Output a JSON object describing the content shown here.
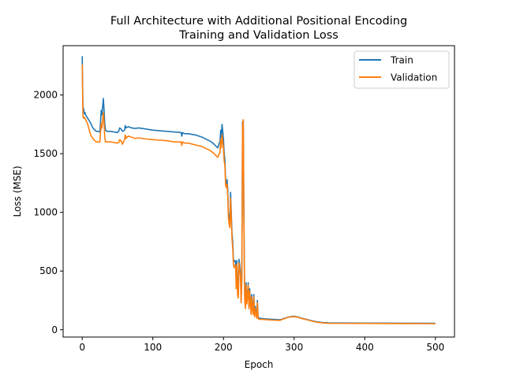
{
  "chart_data": {
    "type": "line",
    "title_line1": "Full Architecture with Additional Positional Encoding",
    "title_line2": "Training and Validation Loss",
    "xlabel": "Epoch",
    "ylabel": "Loss (MSE)",
    "xlim": [
      -27,
      527
    ],
    "ylim": [
      -62,
      2420
    ],
    "xticks": [
      0,
      100,
      200,
      300,
      400,
      500
    ],
    "yticks": [
      0,
      500,
      1000,
      1500,
      2000
    ],
    "xtick_labels": [
      "0",
      "100",
      "200",
      "300",
      "400",
      "500"
    ],
    "ytick_labels": [
      "0",
      "500",
      "1000",
      "1500",
      "2000"
    ],
    "grid": false,
    "legend_position": "top-right",
    "series": [
      {
        "name": "Train",
        "color": "#1f77b4",
        "points": [
          [
            0,
            2330
          ],
          [
            1,
            1900
          ],
          [
            2,
            1880
          ],
          [
            3,
            1840
          ],
          [
            4,
            1850
          ],
          [
            5,
            1830
          ],
          [
            8,
            1800
          ],
          [
            10,
            1780
          ],
          [
            12,
            1760
          ],
          [
            15,
            1720
          ],
          [
            18,
            1700
          ],
          [
            20,
            1690
          ],
          [
            22,
            1690
          ],
          [
            25,
            1685
          ],
          [
            26,
            1780
          ],
          [
            27,
            1870
          ],
          [
            28,
            1830
          ],
          [
            29,
            1900
          ],
          [
            30,
            1970
          ],
          [
            31,
            1870
          ],
          [
            32,
            1750
          ],
          [
            33,
            1700
          ],
          [
            35,
            1690
          ],
          [
            40,
            1690
          ],
          [
            45,
            1685
          ],
          [
            50,
            1680
          ],
          [
            52,
            1695
          ],
          [
            53,
            1720
          ],
          [
            55,
            1710
          ],
          [
            57,
            1690
          ],
          [
            60,
            1700
          ],
          [
            61,
            1740
          ],
          [
            62,
            1720
          ],
          [
            65,
            1730
          ],
          [
            70,
            1720
          ],
          [
            75,
            1715
          ],
          [
            80,
            1720
          ],
          [
            90,
            1710
          ],
          [
            100,
            1700
          ],
          [
            110,
            1695
          ],
          [
            120,
            1690
          ],
          [
            130,
            1685
          ],
          [
            140,
            1680
          ],
          [
            141,
            1650
          ],
          [
            142,
            1680
          ],
          [
            145,
            1670
          ],
          [
            150,
            1670
          ],
          [
            160,
            1660
          ],
          [
            170,
            1640
          ],
          [
            180,
            1610
          ],
          [
            185,
            1590
          ],
          [
            190,
            1560
          ],
          [
            192,
            1550
          ],
          [
            194,
            1590
          ],
          [
            195,
            1600
          ],
          [
            196,
            1700
          ],
          [
            197,
            1640
          ],
          [
            198,
            1750
          ],
          [
            199,
            1690
          ],
          [
            200,
            1620
          ],
          [
            201,
            1500
          ],
          [
            202,
            1450
          ],
          [
            203,
            1270
          ],
          [
            204,
            1240
          ],
          [
            205,
            1280
          ],
          [
            206,
            1200
          ],
          [
            207,
            1000
          ],
          [
            208,
            950
          ],
          [
            209,
            900
          ],
          [
            210,
            1170
          ],
          [
            211,
            1000
          ],
          [
            212,
            820
          ],
          [
            213,
            750
          ],
          [
            214,
            600
          ],
          [
            215,
            580
          ],
          [
            216,
            590
          ],
          [
            217,
            580
          ],
          [
            218,
            400
          ],
          [
            219,
            590
          ],
          [
            220,
            350
          ],
          [
            221,
            300
          ],
          [
            222,
            600
          ],
          [
            223,
            550
          ],
          [
            224,
            500
          ],
          [
            225,
            250
          ],
          [
            226,
            450
          ],
          [
            227,
            1770
          ],
          [
            228,
            1780
          ],
          [
            229,
            900
          ],
          [
            230,
            300
          ],
          [
            231,
            200
          ],
          [
            232,
            400
          ],
          [
            233,
            250
          ],
          [
            234,
            300
          ],
          [
            235,
            400
          ],
          [
            236,
            200
          ],
          [
            237,
            350
          ],
          [
            238,
            250
          ],
          [
            239,
            150
          ],
          [
            240,
            300
          ],
          [
            241,
            200
          ],
          [
            242,
            150
          ],
          [
            243,
            300
          ],
          [
            244,
            130
          ],
          [
            245,
            200
          ],
          [
            246,
            150
          ],
          [
            247,
            120
          ],
          [
            248,
            250
          ],
          [
            249,
            110
          ],
          [
            250,
            100
          ],
          [
            255,
            95
          ],
          [
            260,
            92
          ],
          [
            270,
            88
          ],
          [
            280,
            85
          ],
          [
            285,
            95
          ],
          [
            290,
            105
          ],
          [
            295,
            112
          ],
          [
            300,
            115
          ],
          [
            305,
            110
          ],
          [
            310,
            100
          ],
          [
            320,
            85
          ],
          [
            330,
            70
          ],
          [
            340,
            62
          ],
          [
            350,
            58
          ],
          [
            400,
            57
          ],
          [
            450,
            56
          ],
          [
            500,
            55
          ]
        ]
      },
      {
        "name": "Validation",
        "color": "#ff7f0e",
        "points": [
          [
            0,
            2260
          ],
          [
            1,
            1820
          ],
          [
            2,
            1800
          ],
          [
            3,
            1810
          ],
          [
            4,
            1800
          ],
          [
            5,
            1790
          ],
          [
            8,
            1750
          ],
          [
            10,
            1700
          ],
          [
            12,
            1660
          ],
          [
            15,
            1630
          ],
          [
            18,
            1610
          ],
          [
            20,
            1600
          ],
          [
            22,
            1600
          ],
          [
            25,
            1600
          ],
          [
            26,
            1690
          ],
          [
            27,
            1760
          ],
          [
            28,
            1720
          ],
          [
            29,
            1790
          ],
          [
            30,
            1850
          ],
          [
            31,
            1760
          ],
          [
            32,
            1640
          ],
          [
            33,
            1600
          ],
          [
            35,
            1600
          ],
          [
            40,
            1600
          ],
          [
            45,
            1595
          ],
          [
            50,
            1590
          ],
          [
            52,
            1600
          ],
          [
            53,
            1620
          ],
          [
            55,
            1610
          ],
          [
            57,
            1580
          ],
          [
            60,
            1620
          ],
          [
            61,
            1660
          ],
          [
            62,
            1630
          ],
          [
            65,
            1650
          ],
          [
            70,
            1640
          ],
          [
            75,
            1630
          ],
          [
            80,
            1635
          ],
          [
            90,
            1625
          ],
          [
            100,
            1620
          ],
          [
            110,
            1615
          ],
          [
            120,
            1610
          ],
          [
            130,
            1600
          ],
          [
            140,
            1600
          ],
          [
            141,
            1570
          ],
          [
            142,
            1600
          ],
          [
            145,
            1590
          ],
          [
            150,
            1590
          ],
          [
            160,
            1575
          ],
          [
            170,
            1560
          ],
          [
            180,
            1530
          ],
          [
            185,
            1510
          ],
          [
            190,
            1480
          ],
          [
            192,
            1470
          ],
          [
            194,
            1500
          ],
          [
            195,
            1510
          ],
          [
            196,
            1620
          ],
          [
            197,
            1550
          ],
          [
            198,
            1660
          ],
          [
            199,
            1600
          ],
          [
            200,
            1540
          ],
          [
            201,
            1440
          ],
          [
            202,
            1400
          ],
          [
            203,
            1230
          ],
          [
            204,
            1210
          ],
          [
            205,
            1240
          ],
          [
            206,
            1150
          ],
          [
            207,
            950
          ],
          [
            208,
            900
          ],
          [
            209,
            870
          ],
          [
            210,
            1120
          ],
          [
            211,
            950
          ],
          [
            212,
            780
          ],
          [
            213,
            700
          ],
          [
            214,
            560
          ],
          [
            215,
            530
          ],
          [
            216,
            550
          ],
          [
            217,
            540
          ],
          [
            218,
            350
          ],
          [
            219,
            560
          ],
          [
            220,
            300
          ],
          [
            221,
            270
          ],
          [
            222,
            570
          ],
          [
            223,
            520
          ],
          [
            224,
            460
          ],
          [
            225,
            230
          ],
          [
            226,
            420
          ],
          [
            227,
            1730
          ],
          [
            228,
            1790
          ],
          [
            229,
            850
          ],
          [
            230,
            260
          ],
          [
            231,
            180
          ],
          [
            232,
            380
          ],
          [
            233,
            220
          ],
          [
            234,
            280
          ],
          [
            235,
            380
          ],
          [
            236,
            180
          ],
          [
            237,
            330
          ],
          [
            238,
            220
          ],
          [
            239,
            130
          ],
          [
            240,
            280
          ],
          [
            241,
            180
          ],
          [
            242,
            130
          ],
          [
            243,
            280
          ],
          [
            244,
            110
          ],
          [
            245,
            180
          ],
          [
            246,
            130
          ],
          [
            247,
            100
          ],
          [
            248,
            230
          ],
          [
            249,
            95
          ],
          [
            250,
            90
          ],
          [
            255,
            88
          ],
          [
            260,
            86
          ],
          [
            270,
            82
          ],
          [
            280,
            80
          ],
          [
            285,
            92
          ],
          [
            290,
            103
          ],
          [
            295,
            110
          ],
          [
            300,
            112
          ],
          [
            305,
            107
          ],
          [
            310,
            97
          ],
          [
            320,
            82
          ],
          [
            330,
            67
          ],
          [
            340,
            58
          ],
          [
            350,
            55
          ],
          [
            400,
            54
          ],
          [
            450,
            53
          ],
          [
            500,
            52
          ]
        ]
      }
    ]
  }
}
